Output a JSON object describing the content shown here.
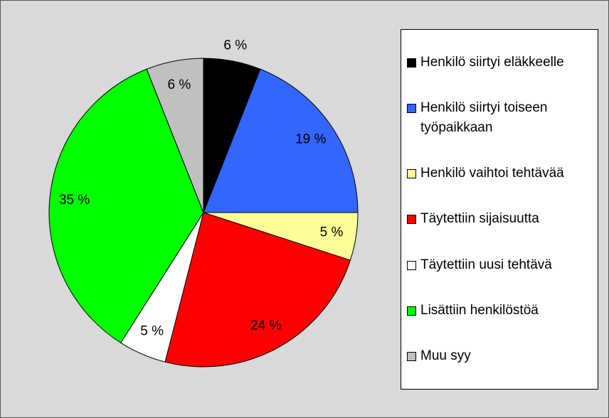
{
  "chart_data": {
    "type": "pie",
    "categories": [
      "Henkilö siirtyi eläkkeelle",
      "Henkilö siirtyi toiseen työpaikkaan",
      "Henkilö vaihtoi tehtävää",
      "Täytettiin sijaisuutta",
      "Täytettiin uusi tehtävä",
      "Lisättiin henkilöstöä",
      "Muu syy"
    ],
    "values": [
      6,
      19,
      5,
      24,
      5,
      35,
      6
    ],
    "value_labels": [
      "6 %",
      "19 %",
      "5 %",
      "24 %",
      "5 %",
      "35 %",
      "6 %"
    ],
    "colors": [
      "#000000",
      "#3366ff",
      "#ffff99",
      "#ff0000",
      "#ffffff",
      "#00ff00",
      "#c0c0c0"
    ],
    "legend": "right"
  }
}
